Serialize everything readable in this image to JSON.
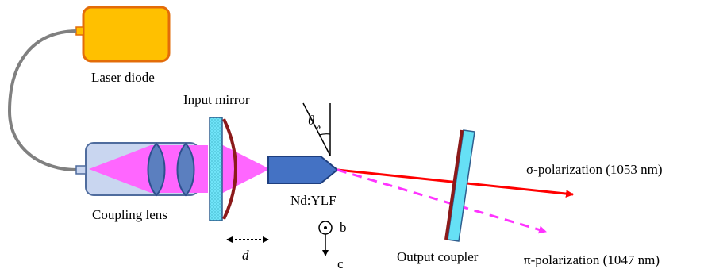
{
  "labels": {
    "laser_diode": "Laser diode",
    "input_mirror": "Input mirror",
    "coupling_lens": "Coupling lens",
    "crystal": "Nd:YLF",
    "output_coupler": "Output coupler",
    "sigma_beam": "σ-polarization (1053 nm)",
    "pi_beam": "π-polarization (1047 nm)",
    "distance": "d",
    "theta": "θ",
    "theta_sub": "w",
    "axis_b": "b",
    "axis_c": "c"
  },
  "colors": {
    "laser_body": "#FFC000",
    "laser_edge": "#E36C09",
    "fiber": "#808080",
    "lens_housing": "#C9D6F0",
    "housing_edge": "#4F6C9E",
    "pump_beam": "#FF66FF",
    "lens": "#5B7FBF",
    "mirror_glass": "#66E0F5",
    "mirror_coat": "#8B1A1A",
    "crystal": "#4472C4",
    "sigma": "#FF0000",
    "pi": "#FF33FF"
  }
}
